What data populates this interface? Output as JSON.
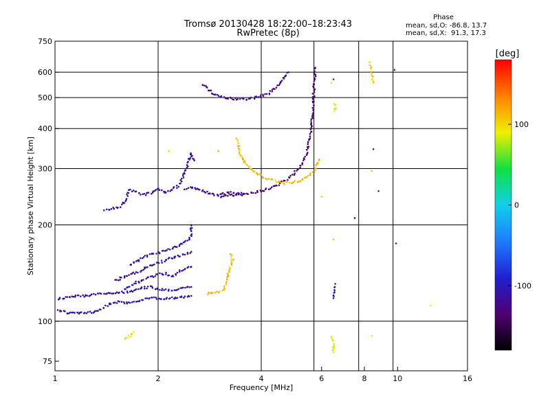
{
  "header": {
    "title_line1": "Tromsø 20130428 18:22:00–18:23:43",
    "title_line2": "RwPretec (8p)",
    "phase_heading": "Phase",
    "phase_line_o": "mean, sd,O: -86.8, 13.7",
    "phase_line_x": "mean, sd,X:  91.3, 17.3"
  },
  "colorbar": {
    "unit": "[deg]",
    "ticks": [
      {
        "value": 100,
        "label": "100"
      },
      {
        "value": 0,
        "label": "0"
      },
      {
        "value": -100,
        "label": "-100"
      }
    ],
    "range": [
      -180,
      180
    ],
    "colors": [
      "#000000",
      "#500070",
      "#2020d0",
      "#1e7cff",
      "#10d0e8",
      "#10e040",
      "#f0f000",
      "#ff8000",
      "#ff0000"
    ]
  },
  "chart_data": {
    "type": "scatter",
    "xlabel": "Frequency [MHz]",
    "ylabel": "Stationary phase Virtual Height [km]",
    "xscale": "log",
    "yscale": "log",
    "xlim": [
      1,
      16
    ],
    "ylim": [
      70,
      750
    ],
    "grid": true,
    "xticks": [
      {
        "value": 1,
        "label": "1"
      },
      {
        "value": 2,
        "label": "2"
      },
      {
        "value": 4,
        "label": "4"
      },
      {
        "value": 6,
        "label": "6"
      },
      {
        "value": 8,
        "label": "8"
      },
      {
        "value": 10,
        "label": "10"
      },
      {
        "value": 16,
        "label": "16"
      }
    ],
    "yticks": [
      {
        "value": 75,
        "label": "75"
      },
      {
        "value": 100,
        "label": "100"
      },
      {
        "value": 200,
        "label": "200"
      },
      {
        "value": 300,
        "label": "300"
      },
      {
        "value": 400,
        "label": "400"
      },
      {
        "value": 500,
        "label": "500"
      },
      {
        "value": 600,
        "label": "600"
      },
      {
        "value": 750,
        "label": "750"
      }
    ],
    "vgrid": [
      2,
      4,
      5.7,
      7.7,
      9.7
    ],
    "hgrid": [
      100,
      200,
      300,
      400,
      500,
      600
    ],
    "traces": [
      {
        "phase": -105,
        "points": [
          [
            1.0,
            109
          ],
          [
            1.1,
            106
          ],
          [
            1.2,
            106
          ],
          [
            1.3,
            107
          ],
          [
            1.38,
            110
          ],
          [
            1.45,
            113
          ],
          [
            1.55,
            115
          ],
          [
            1.65,
            114
          ],
          [
            1.75,
            116
          ],
          [
            1.85,
            118
          ],
          [
            1.95,
            118
          ],
          [
            2.05,
            117
          ],
          [
            2.2,
            118
          ],
          [
            2.35,
            119
          ],
          [
            2.5,
            120
          ]
        ]
      },
      {
        "phase": -110,
        "points": [
          [
            1.0,
            117
          ],
          [
            1.1,
            119
          ],
          [
            1.2,
            120
          ],
          [
            1.3,
            121
          ],
          [
            1.4,
            122
          ],
          [
            1.55,
            123
          ],
          [
            1.7,
            124
          ],
          [
            1.8,
            127
          ],
          [
            1.9,
            128
          ],
          [
            2.0,
            126
          ],
          [
            2.2,
            125
          ],
          [
            2.4,
            127
          ],
          [
            2.5,
            128
          ]
        ]
      },
      {
        "phase": -110,
        "points": [
          [
            1.6,
            126
          ],
          [
            1.7,
            131
          ],
          [
            1.8,
            135
          ],
          [
            1.9,
            137
          ],
          [
            2.0,
            140
          ],
          [
            2.1,
            141
          ],
          [
            2.2,
            138
          ],
          [
            2.3,
            143
          ],
          [
            2.4,
            146
          ],
          [
            2.5,
            148
          ]
        ]
      },
      {
        "phase": -112,
        "points": [
          [
            1.5,
            134
          ],
          [
            1.6,
            138
          ],
          [
            1.7,
            141
          ],
          [
            1.8,
            145
          ],
          [
            1.9,
            149
          ],
          [
            2.0,
            152
          ],
          [
            2.1,
            155
          ],
          [
            2.2,
            158
          ],
          [
            2.3,
            160
          ],
          [
            2.4,
            162
          ],
          [
            2.5,
            165
          ]
        ]
      },
      {
        "phase": -112,
        "points": [
          [
            1.65,
            150
          ],
          [
            1.75,
            155
          ],
          [
            1.85,
            160
          ],
          [
            1.95,
            163
          ],
          [
            2.05,
            165
          ],
          [
            2.15,
            168
          ],
          [
            2.3,
            172
          ],
          [
            2.4,
            176
          ],
          [
            2.45,
            180
          ],
          [
            2.5,
            186
          ],
          [
            2.5,
            192
          ],
          [
            2.5,
            200
          ]
        ]
      },
      {
        "phase": -110,
        "points": [
          [
            1.4,
            222
          ],
          [
            1.55,
            228
          ],
          [
            1.6,
            236
          ],
          [
            1.62,
            245
          ],
          [
            1.65,
            258
          ],
          [
            1.7,
            255
          ],
          [
            1.8,
            248
          ],
          [
            1.9,
            252
          ],
          [
            2.0,
            260
          ],
          [
            2.1,
            252
          ],
          [
            2.2,
            258
          ],
          [
            2.3,
            265
          ],
          [
            2.35,
            278
          ],
          [
            2.4,
            295
          ],
          [
            2.45,
            315
          ],
          [
            2.5,
            335
          ],
          [
            2.55,
            318
          ]
        ]
      },
      {
        "phase": -115,
        "points": [
          [
            2.4,
            258
          ],
          [
            2.5,
            262
          ],
          [
            2.6,
            258
          ],
          [
            2.7,
            255
          ],
          [
            2.8,
            252
          ],
          [
            2.9,
            250
          ],
          [
            3.0,
            248
          ],
          [
            3.1,
            250
          ],
          [
            3.2,
            252
          ],
          [
            3.3,
            252
          ],
          [
            3.4,
            250
          ],
          [
            3.5,
            252
          ]
        ]
      },
      {
        "phase": -130,
        "points": [
          [
            3.0,
            245
          ],
          [
            3.2,
            247
          ],
          [
            3.4,
            248
          ],
          [
            3.6,
            250
          ],
          [
            3.8,
            252
          ],
          [
            4.0,
            255
          ],
          [
            4.2,
            260
          ],
          [
            4.4,
            265
          ],
          [
            4.6,
            272
          ],
          [
            4.8,
            280
          ],
          [
            5.0,
            290
          ],
          [
            5.2,
            305
          ],
          [
            5.4,
            330
          ],
          [
            5.5,
            360
          ],
          [
            5.6,
            400
          ],
          [
            5.65,
            450
          ],
          [
            5.68,
            500
          ],
          [
            5.72,
            560
          ],
          [
            5.75,
            620
          ]
        ]
      },
      {
        "phase": 110,
        "points": [
          [
            3.4,
            370
          ],
          [
            3.45,
            345
          ],
          [
            3.5,
            325
          ],
          [
            3.6,
            310
          ],
          [
            3.8,
            295
          ],
          [
            4.0,
            285
          ],
          [
            4.2,
            278
          ],
          [
            4.5,
            272
          ],
          [
            4.7,
            270
          ],
          [
            4.9,
            272
          ],
          [
            5.2,
            275
          ],
          [
            5.5,
            285
          ],
          [
            5.7,
            295
          ],
          [
            5.8,
            305
          ],
          [
            5.9,
            320
          ]
        ]
      },
      {
        "phase": -120,
        "points": [
          [
            2.7,
            550
          ],
          [
            2.8,
            530
          ],
          [
            2.9,
            515
          ],
          [
            3.0,
            505
          ],
          [
            3.1,
            500
          ],
          [
            3.2,
            497
          ],
          [
            3.4,
            495
          ],
          [
            3.6,
            495
          ],
          [
            3.8,
            498
          ],
          [
            4.0,
            505
          ],
          [
            4.2,
            515
          ],
          [
            4.4,
            535
          ],
          [
            4.6,
            565
          ],
          [
            4.8,
            600
          ]
        ]
      },
      {
        "phase": 110,
        "points": [
          [
            2.8,
            122
          ],
          [
            2.9,
            123
          ],
          [
            3.0,
            124
          ],
          [
            3.1,
            125
          ],
          [
            3.15,
            130
          ],
          [
            3.2,
            140
          ],
          [
            3.25,
            148
          ],
          [
            3.3,
            155
          ],
          [
            3.25,
            162
          ]
        ]
      },
      {
        "phase": 90,
        "points": [
          [
            6.5,
            480
          ],
          [
            6.6,
            470
          ],
          [
            6.55,
            455
          ],
          [
            6.5,
            180
          ],
          [
            6.45,
            90
          ],
          [
            6.5,
            80
          ]
        ]
      },
      {
        "phase": -100,
        "points": [
          [
            6.55,
            130
          ],
          [
            6.5,
            118
          ],
          [
            7.5,
            210
          ],
          [
            6.5,
            570
          ],
          [
            9.8,
            610
          ],
          [
            9.9,
            175
          ],
          [
            8.5,
            345
          ],
          [
            8.8,
            255
          ]
        ]
      },
      {
        "phase": 100,
        "points": [
          [
            8.3,
            640
          ],
          [
            8.5,
            555
          ],
          [
            8.4,
            295
          ],
          [
            8.4,
            90
          ],
          [
            6.0,
            245
          ],
          [
            6.4,
            555
          ],
          [
            12.5,
            112
          ],
          [
            1.7,
            92
          ],
          [
            1.6,
            88
          ],
          [
            3.0,
            340
          ],
          [
            2.15,
            340
          ]
        ]
      }
    ]
  }
}
